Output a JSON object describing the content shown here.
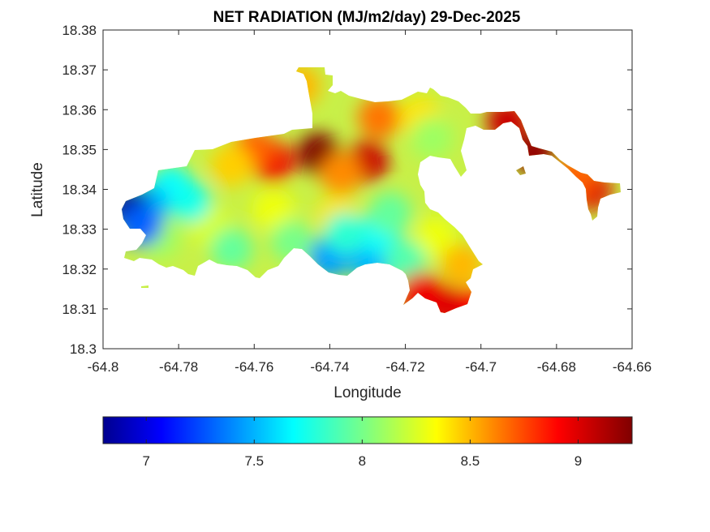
{
  "chart_data": {
    "type": "heatmap",
    "title": "NET RADIATION (MJ/m2/day) 29-Dec-2025",
    "xlabel": "Longitude",
    "ylabel": "Latitude",
    "xlim": [
      -64.8,
      -64.66
    ],
    "ylim": [
      18.3,
      18.38
    ],
    "x_ticks": [
      "-64.8",
      "-64.78",
      "-64.76",
      "-64.74",
      "-64.72",
      "-64.7",
      "-64.68",
      "-64.66"
    ],
    "y_ticks": [
      "18.3",
      "18.31",
      "18.32",
      "18.33",
      "18.34",
      "18.35",
      "18.36",
      "18.37",
      "18.38"
    ],
    "x_tick_values": [
      -64.8,
      -64.78,
      -64.76,
      -64.74,
      -64.72,
      -64.7,
      -64.68,
      -64.66
    ],
    "y_tick_values": [
      18.3,
      18.31,
      18.32,
      18.33,
      18.34,
      18.35,
      18.36,
      18.37,
      18.38
    ],
    "grid": false,
    "colormap": "jet",
    "colorbar": {
      "orientation": "horizontal",
      "placement": "below",
      "range": [
        6.8,
        9.25
      ],
      "ticks": [
        "7",
        "7.5",
        "8",
        "8.5",
        "9"
      ],
      "tick_values": [
        7,
        7.5,
        8,
        8.5,
        9
      ]
    },
    "hotspots": [
      {
        "lon": -64.743,
        "lat": 18.349,
        "value": 9.25
      },
      {
        "lon": -64.73,
        "lat": 18.347,
        "value": 9.05
      },
      {
        "lon": -64.755,
        "lat": 18.347,
        "value": 8.95
      },
      {
        "lon": -64.76,
        "lat": 18.35,
        "value": 8.7
      },
      {
        "lon": -64.727,
        "lat": 18.358,
        "value": 8.65
      },
      {
        "lon": -64.737,
        "lat": 18.344,
        "value": 8.6
      },
      {
        "lon": -64.766,
        "lat": 18.346,
        "value": 8.45
      },
      {
        "lon": -64.748,
        "lat": 18.366,
        "value": 8.5
      },
      {
        "lon": -64.716,
        "lat": 18.358,
        "value": 8.4
      },
      {
        "lon": -64.755,
        "lat": 18.335,
        "value": 8.3
      },
      {
        "lon": -64.772,
        "lat": 18.331,
        "value": 8.25
      },
      {
        "lon": -64.712,
        "lat": 18.328,
        "value": 8.3
      },
      {
        "lon": -64.705,
        "lat": 18.321,
        "value": 8.5
      },
      {
        "lon": -64.713,
        "lat": 18.353,
        "value": 8.1
      },
      {
        "lon": -64.738,
        "lat": 18.333,
        "value": 8.4
      },
      {
        "lon": -64.785,
        "lat": 18.328,
        "value": 8.1
      },
      {
        "lon": -64.777,
        "lat": 18.337,
        "value": 7.75
      },
      {
        "lon": -64.782,
        "lat": 18.341,
        "value": 7.7
      },
      {
        "lon": -64.788,
        "lat": 18.336,
        "value": 7.5
      },
      {
        "lon": -64.766,
        "lat": 18.325,
        "value": 7.95
      },
      {
        "lon": -64.75,
        "lat": 18.327,
        "value": 8.0
      },
      {
        "lon": -64.74,
        "lat": 18.323,
        "value": 7.45
      },
      {
        "lon": -64.729,
        "lat": 18.322,
        "value": 7.5
      },
      {
        "lon": -64.727,
        "lat": 18.329,
        "value": 7.7
      },
      {
        "lon": -64.72,
        "lat": 18.322,
        "value": 7.9
      },
      {
        "lon": -64.724,
        "lat": 18.334,
        "value": 7.95
      },
      {
        "lon": -64.736,
        "lat": 18.329,
        "value": 7.8
      },
      {
        "lon": -64.793,
        "lat": 18.335,
        "value": 6.8
      },
      {
        "lon": -64.79,
        "lat": 18.331,
        "value": 7.3
      },
      {
        "lon": -64.702,
        "lat": 18.31,
        "value": 8.9
      },
      {
        "lon": -64.71,
        "lat": 18.311,
        "value": 9.0
      },
      {
        "lon": -64.716,
        "lat": 18.314,
        "value": 8.95
      },
      {
        "lon": -64.693,
        "lat": 18.357,
        "value": 9.05
      },
      {
        "lon": -64.686,
        "lat": 18.349,
        "value": 9.2
      },
      {
        "lon": -64.671,
        "lat": 18.34,
        "value": 9.0
      },
      {
        "lon": -64.675,
        "lat": 18.343,
        "value": 8.7
      }
    ]
  }
}
